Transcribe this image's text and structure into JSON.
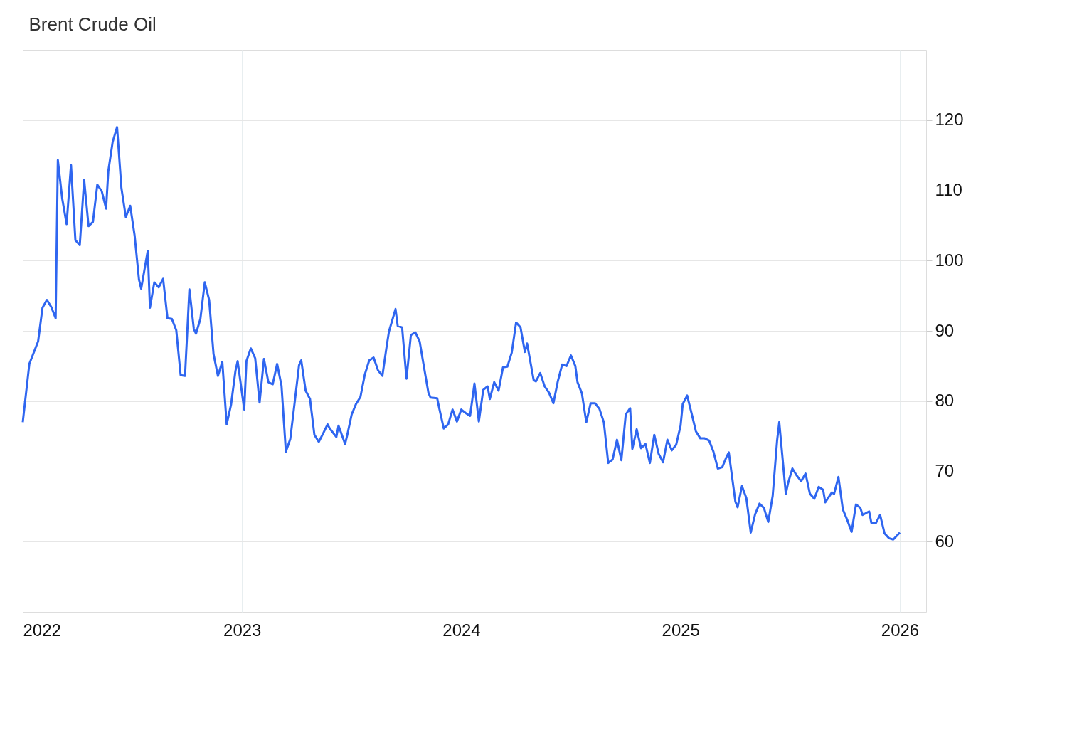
{
  "chart_data": {
    "type": "line",
    "title": "Brent Crude Oil",
    "xlim": [
      2022,
      2026.12
    ],
    "xticks": [
      2022,
      2023,
      2024,
      2025,
      2026
    ],
    "ylim": [
      50,
      130
    ],
    "yticks": [
      60,
      70,
      80,
      90,
      100,
      110,
      120
    ],
    "grid": true,
    "x": [
      2022.0,
      2022.03,
      2022.07,
      2022.09,
      2022.11,
      2022.13,
      2022.15,
      2022.16,
      2022.18,
      2022.2,
      2022.22,
      2022.24,
      2022.26,
      2022.28,
      2022.3,
      2022.32,
      2022.34,
      2022.36,
      2022.38,
      2022.39,
      2022.41,
      2022.43,
      2022.45,
      2022.47,
      2022.49,
      2022.51,
      2022.53,
      2022.54,
      2022.57,
      2022.58,
      2022.6,
      2022.62,
      2022.64,
      2022.66,
      2022.68,
      2022.7,
      2022.72,
      2022.74,
      2022.76,
      2022.78,
      2022.79,
      2022.81,
      2022.83,
      2022.85,
      2022.87,
      2022.89,
      2022.91,
      2022.93,
      2022.95,
      2022.97,
      2022.98,
      2023.01,
      2023.02,
      2023.04,
      2023.06,
      2023.08,
      2023.1,
      2023.12,
      2023.14,
      2023.16,
      2023.18,
      2023.2,
      2023.22,
      2023.24,
      2023.26,
      2023.27,
      2023.29,
      2023.31,
      2023.33,
      2023.35,
      2023.37,
      2023.39,
      2023.4,
      2023.43,
      2023.44,
      2023.47,
      2023.48,
      2023.5,
      2023.52,
      2023.54,
      2023.56,
      2023.58,
      2023.6,
      2023.62,
      2023.64,
      2023.66,
      2023.67,
      2023.7,
      2023.71,
      2023.73,
      2023.75,
      2023.77,
      2023.79,
      2023.81,
      2023.83,
      2023.85,
      2023.86,
      2023.89,
      2023.9,
      2023.92,
      2023.94,
      2023.96,
      2023.98,
      2024.0,
      2024.02,
      2024.04,
      2024.06,
      2024.08,
      2024.1,
      2024.12,
      2024.13,
      2024.15,
      2024.17,
      2024.19,
      2024.21,
      2024.23,
      2024.25,
      2024.27,
      2024.29,
      2024.3,
      2024.33,
      2024.34,
      2024.36,
      2024.38,
      2024.4,
      2024.42,
      2024.44,
      2024.46,
      2024.48,
      2024.5,
      2024.52,
      2024.53,
      2024.55,
      2024.57,
      2024.59,
      2024.61,
      2024.63,
      2024.65,
      2024.67,
      2024.69,
      2024.71,
      2024.73,
      2024.75,
      2024.77,
      2024.78,
      2024.8,
      2024.82,
      2024.84,
      2024.86,
      2024.88,
      2024.9,
      2024.92,
      2024.94,
      2024.96,
      2024.98,
      2025.0,
      2025.01,
      2025.03,
      2025.05,
      2025.07,
      2025.09,
      2025.11,
      2025.13,
      2025.15,
      2025.17,
      2025.19,
      2025.21,
      2025.22,
      2025.25,
      2025.26,
      2025.28,
      2025.3,
      2025.32,
      2025.34,
      2025.36,
      2025.38,
      2025.4,
      2025.42,
      2025.44,
      2025.45,
      2025.48,
      2025.49,
      2025.51,
      2025.53,
      2025.55,
      2025.57,
      2025.59,
      2025.61,
      2025.63,
      2025.65,
      2025.66,
      2025.69,
      2025.7,
      2025.72,
      2025.74,
      2025.76,
      2025.78,
      2025.8,
      2025.82,
      2025.83,
      2025.86,
      2025.87,
      2025.89,
      2025.91,
      2025.93,
      2025.95,
      2025.97,
      2026.0
    ],
    "series": [
      {
        "color": "#2f66f0",
        "values": [
          77.0,
          85.3,
          88.5,
          93.3,
          94.4,
          93.4,
          91.8,
          114.3,
          108.8,
          105.2,
          113.6,
          102.9,
          102.2,
          111.5,
          104.9,
          105.5,
          110.8,
          109.9,
          107.4,
          112.7,
          116.9,
          119.0,
          110.3,
          106.2,
          107.8,
          103.6,
          97.3,
          96.0,
          101.4,
          93.3,
          96.9,
          96.2,
          97.4,
          91.8,
          91.7,
          90.1,
          83.7,
          83.6,
          95.9,
          90.3,
          89.6,
          91.7,
          96.9,
          94.4,
          86.7,
          83.6,
          85.6,
          76.7,
          79.5,
          84.3,
          85.7,
          78.8,
          85.7,
          87.5,
          86.1,
          79.8,
          86.0,
          82.7,
          82.4,
          85.3,
          82.2,
          72.8,
          74.6,
          79.8,
          85.1,
          85.8,
          81.5,
          80.3,
          75.2,
          74.2,
          75.4,
          76.7,
          76.1,
          74.9,
          76.5,
          73.9,
          75.2,
          78.1,
          79.6,
          80.6,
          83.8,
          85.8,
          86.2,
          84.4,
          83.6,
          87.9,
          89.9,
          93.1,
          90.7,
          90.5,
          83.2,
          89.4,
          89.8,
          88.5,
          84.8,
          81.2,
          80.5,
          80.4,
          78.9,
          76.1,
          76.7,
          78.8,
          77.1,
          78.8,
          78.3,
          77.9,
          82.5,
          77.1,
          81.6,
          82.1,
          80.3,
          82.7,
          81.5,
          84.8,
          84.9,
          86.9,
          91.2,
          90.5,
          87.0,
          88.2,
          83.0,
          82.8,
          84.0,
          82.1,
          81.2,
          79.7,
          82.8,
          85.2,
          85.0,
          86.5,
          85.0,
          82.7,
          81.1,
          77.0,
          79.7,
          79.7,
          78.9,
          77.0,
          71.2,
          71.7,
          74.5,
          71.6,
          78.1,
          79.0,
          73.2,
          76.0,
          73.3,
          73.9,
          71.2,
          75.2,
          72.5,
          71.3,
          74.5,
          73.0,
          73.8,
          76.5,
          79.6,
          80.8,
          78.3,
          75.7,
          74.7,
          74.7,
          74.4,
          72.8,
          70.4,
          70.6,
          72.1,
          72.7,
          65.7,
          64.9,
          67.9,
          66.2,
          61.3,
          63.9,
          65.4,
          64.8,
          62.8,
          66.5,
          74.3,
          77.0,
          66.8,
          68.3,
          70.4,
          69.4,
          68.6,
          69.7,
          66.8,
          66.1,
          67.8,
          67.4,
          65.6,
          67.0,
          66.8,
          69.2,
          64.6,
          63.1,
          61.4,
          65.3,
          64.8,
          63.8,
          64.3,
          62.7,
          62.6,
          63.8,
          61.2,
          60.5,
          60.3,
          61.3
        ]
      }
    ]
  }
}
